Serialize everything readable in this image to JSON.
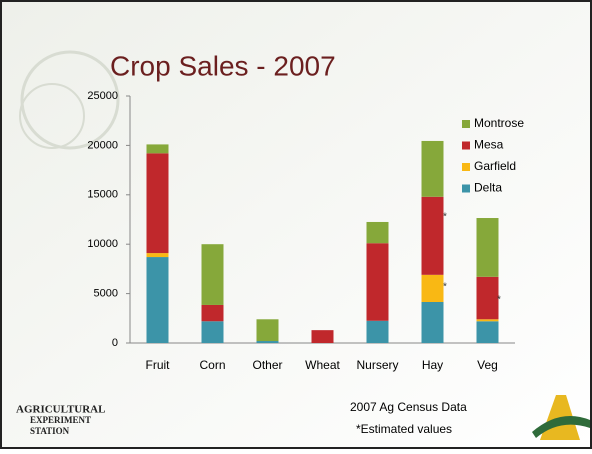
{
  "chart_data": {
    "type": "stacked_bar",
    "title": "Crop Sales - 2007",
    "categories": [
      "Fruit",
      "Corn",
      "Other",
      "Wheat",
      "Nursery",
      "Hay",
      "Veg"
    ],
    "series": [
      {
        "name": "Delta",
        "color": "#3c94a8",
        "values": [
          8700,
          2200,
          200,
          0,
          2250,
          4150,
          2200
        ]
      },
      {
        "name": "Garfield",
        "color": "#f9b814",
        "values": [
          400,
          0,
          0,
          0,
          0,
          2750,
          200
        ]
      },
      {
        "name": "Mesa",
        "color": "#c0282c",
        "values": [
          10100,
          1650,
          0,
          1300,
          7850,
          7900,
          4300
        ]
      },
      {
        "name": "Montrose",
        "color": "#86a83a",
        "values": [
          900,
          6150,
          2200,
          0,
          2150,
          5650,
          5950
        ]
      }
    ],
    "ylim": [
      0,
      25000
    ],
    "yticks": [
      0,
      5000,
      10000,
      15000,
      20000,
      25000
    ],
    "grid": false,
    "legend": "upper right",
    "annotations": [
      "*",
      "*",
      "*"
    ],
    "notes": [
      "2007 Ag Census Data",
      "*Estimated values"
    ],
    "logo": [
      "AGRICULTURAL",
      "EXPERIMENT",
      "STATION"
    ]
  }
}
